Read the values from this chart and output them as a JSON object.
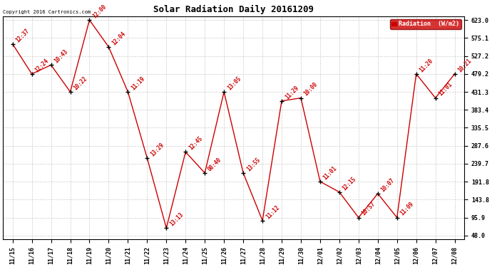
{
  "title": "Solar Radiation Daily 20161209",
  "copyright": "Copyright 2016 Cartronics.com",
  "legend_label": "Radiation  (W/m2)",
  "background_color": "#ffffff",
  "plot_bg_color": "#ffffff",
  "line_color": "#cc0000",
  "marker_color": "#000000",
  "label_color": "#cc0000",
  "grid_color": "#cccccc",
  "dates": [
    "11/15",
    "11/16",
    "11/17",
    "11/18",
    "11/19",
    "11/20",
    "11/21",
    "11/22",
    "11/23",
    "11/24",
    "11/25",
    "11/26",
    "11/27",
    "11/28",
    "11/29",
    "11/30",
    "12/01",
    "12/02",
    "12/03",
    "12/04",
    "12/05",
    "12/06",
    "12/07",
    "12/08"
  ],
  "values": [
    559.0,
    479.2,
    503.0,
    431.3,
    623.0,
    551.0,
    431.3,
    255.0,
    68.0,
    271.0,
    215.0,
    431.3,
    215.0,
    88.0,
    407.0,
    415.0,
    192.0,
    164.0,
    96.0,
    160.0,
    96.0,
    479.2,
    415.0,
    479.2
  ],
  "annotations": [
    "12:37",
    "12:24",
    "10:43",
    "10:22",
    "12:00",
    "12:04",
    "11:19",
    "13:29",
    "13:13",
    "12:45",
    "08:40",
    "13:05",
    "13:55",
    "11:12",
    "11:29",
    "10:00",
    "11:01",
    "12:15",
    "10:57",
    "10:07",
    "11:09",
    "11:20",
    "11:01",
    "10:21"
  ],
  "ylim_min": 38.0,
  "ylim_max": 633.0,
  "yticks": [
    48.0,
    95.9,
    143.8,
    191.8,
    239.7,
    287.6,
    335.5,
    383.4,
    431.3,
    479.2,
    527.2,
    575.1,
    623.0
  ],
  "title_fontsize": 9,
  "tick_fontsize": 6,
  "annot_fontsize": 5.5,
  "copyright_fontsize": 5,
  "legend_fontsize": 6
}
